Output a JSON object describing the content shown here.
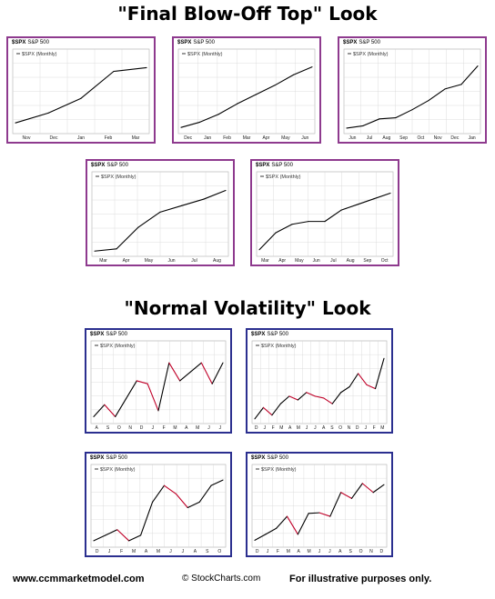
{
  "sections": {
    "top_title": "\"Final Blow-Off Top\" Look",
    "bottom_title": "\"Normal Volatility\" Look"
  },
  "footer": {
    "website": "www.ccmmarketmodel.com",
    "copyright": "© StockCharts.com",
    "disclaimer": "For illustrative purposes only."
  },
  "colors": {
    "blowoff_border": "#8e3a8e",
    "normal_border": "#2b2f8f",
    "line": "#000000",
    "down_segment": "#c00028",
    "grid": "#d6d6d6"
  },
  "chart_data": [
    {
      "type": "line",
      "group": "blowoff",
      "symbol": "$SPX",
      "name": "S&P 500",
      "series_name": "$SPX (Monthly)",
      "x_labels": [
        "Nov",
        "Dec",
        "Jan",
        "Feb",
        "Mar"
      ],
      "values": [
        100,
        104,
        110,
        121,
        122.5
      ],
      "ylim": [
        96,
        126
      ],
      "grid": true
    },
    {
      "type": "line",
      "group": "blowoff",
      "symbol": "$SPX",
      "name": "S&P 500",
      "series_name": "$SPX (Monthly)",
      "x_labels": [
        "Dec",
        "Jan",
        "Feb",
        "Mar",
        "Apr",
        "May",
        "Jun"
      ],
      "values": [
        100,
        102,
        105,
        109,
        112.5,
        116,
        120,
        123
      ],
      "ylim": [
        98,
        126
      ],
      "grid": true
    },
    {
      "type": "line",
      "group": "blowoff",
      "symbol": "$SPX",
      "name": "S&P 500",
      "series_name": "$SPX (Monthly)",
      "x_labels": [
        "Jun",
        "Jul",
        "Aug",
        "Sep",
        "Oct",
        "Nov",
        "Dec",
        "Jan"
      ],
      "values": [
        100,
        101,
        104,
        104.5,
        108,
        112,
        117,
        119,
        127
      ],
      "ylim": [
        98,
        130
      ],
      "grid": true
    },
    {
      "type": "line",
      "group": "blowoff",
      "symbol": "$SPX",
      "name": "S&P 500",
      "series_name": "$SPX (Monthly)",
      "x_labels": [
        "Mar",
        "Apr",
        "May",
        "Jun",
        "Jul",
        "Aug"
      ],
      "values": [
        100,
        101,
        111,
        118,
        121,
        124,
        128
      ],
      "ylim": [
        98,
        132
      ],
      "grid": true
    },
    {
      "type": "line",
      "group": "blowoff",
      "symbol": "$SPX",
      "name": "S&P 500",
      "series_name": "$SPX (Monthly)",
      "x_labels": [
        "Mar",
        "Apr",
        "May",
        "Jun",
        "Jul",
        "Aug",
        "Sep",
        "Oct"
      ],
      "values": [
        100,
        106,
        109,
        110,
        110,
        114,
        116,
        118,
        120
      ],
      "ylim": [
        98,
        124
      ],
      "grid": true
    },
    {
      "type": "line",
      "group": "normal",
      "symbol": "$SPX",
      "name": "S&P 500",
      "series_name": "$SPX (Monthly)",
      "x_labels": [
        "A",
        "S",
        "O",
        "N",
        "D",
        "J",
        "F",
        "M",
        "A",
        "M",
        "J",
        "J"
      ],
      "values": [
        100,
        102,
        100,
        103,
        106,
        105.5,
        101,
        109,
        106,
        107.5,
        109,
        105.5,
        109
      ],
      "ylim": [
        99,
        111
      ],
      "grid": true
    },
    {
      "type": "line",
      "group": "normal",
      "symbol": "$SPX",
      "name": "S&P 500",
      "series_name": "$SPX (Monthly)",
      "x_labels": [
        "D",
        "J",
        "F",
        "M",
        "A",
        "M",
        "J",
        "J",
        "A",
        "S",
        "O",
        "N",
        "D",
        "J",
        "F",
        "M"
      ],
      "values": [
        100,
        103,
        101,
        104,
        106,
        105,
        107,
        106,
        105.5,
        104,
        107,
        108.5,
        112,
        109,
        108,
        116
      ],
      "ylim": [
        99,
        118
      ],
      "grid": true
    },
    {
      "type": "line",
      "group": "normal",
      "symbol": "$SPX",
      "name": "S&P 500",
      "series_name": "$SPX (Monthly)",
      "x_labels": [
        "D",
        "J",
        "F",
        "M",
        "A",
        "M",
        "J",
        "J",
        "A",
        "S",
        "O"
      ],
      "values": [
        100,
        101,
        102,
        100,
        101,
        107,
        110,
        108.5,
        106,
        107,
        110,
        111
      ],
      "ylim": [
        99,
        112
      ],
      "grid": true
    },
    {
      "type": "line",
      "group": "normal",
      "symbol": "$SPX",
      "name": "S&P 500",
      "series_name": "$SPX (Monthly)",
      "x_labels": [
        "D",
        "J",
        "F",
        "M",
        "A",
        "M",
        "J",
        "J",
        "A",
        "S",
        "O",
        "N",
        "D"
      ],
      "values": [
        100,
        101,
        102,
        104,
        101,
        104.5,
        104.6,
        104,
        108,
        107,
        109.5,
        108,
        109.3
      ],
      "ylim": [
        99,
        111
      ],
      "grid": true
    }
  ]
}
